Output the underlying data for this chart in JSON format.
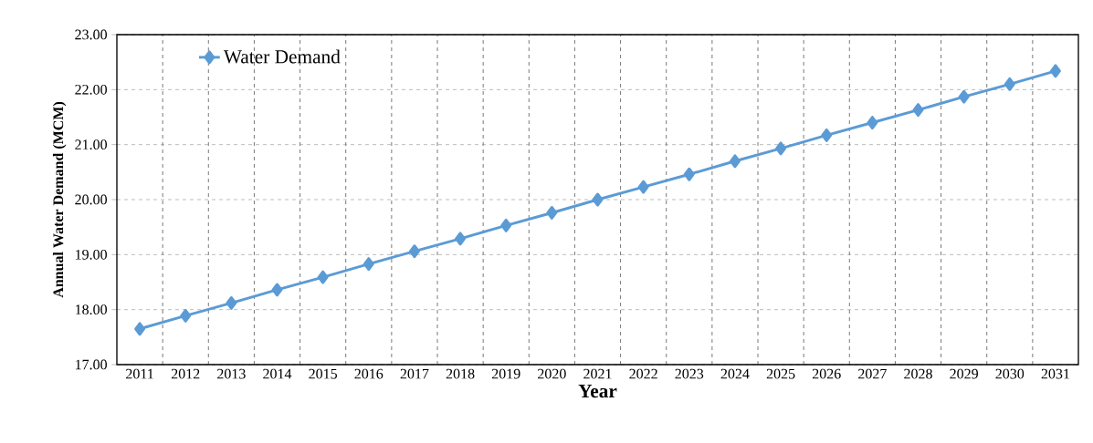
{
  "chart_data": {
    "type": "line",
    "xlabel": "Year",
    "ylabel": "Annual Water Demand (MCM)",
    "categories": [
      "2011",
      "2012",
      "2013",
      "2014",
      "2015",
      "2016",
      "2017",
      "2018",
      "2019",
      "2020",
      "2021",
      "2022",
      "2023",
      "2024",
      "2025",
      "2026",
      "2027",
      "2028",
      "2029",
      "2030",
      "2031"
    ],
    "series": [
      {
        "name": "Water Demand",
        "color": "#5b9bd5",
        "values": [
          17.65,
          17.89,
          18.12,
          18.36,
          18.59,
          18.83,
          19.06,
          19.29,
          19.53,
          19.76,
          20.0,
          20.23,
          20.46,
          20.7,
          20.93,
          21.17,
          21.4,
          21.63,
          21.87,
          22.1,
          22.34
        ]
      }
    ],
    "ylim": [
      17,
      23
    ],
    "yticks": [
      {
        "value": 17,
        "label": "17.00"
      },
      {
        "value": 18,
        "label": "18.00"
      },
      {
        "value": 19,
        "label": "19.00"
      },
      {
        "value": 20,
        "label": "20.00"
      },
      {
        "value": 21,
        "label": "21.00"
      },
      {
        "value": 22,
        "label": "22.00"
      },
      {
        "value": 23,
        "label": "23.00"
      }
    ],
    "grid": true,
    "legend": "top left",
    "marker": "diamond",
    "line_style": "solid"
  }
}
